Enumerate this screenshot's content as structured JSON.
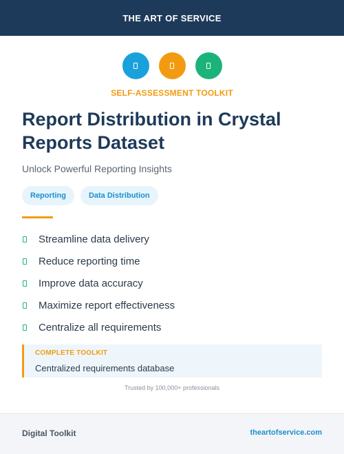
{
  "header": {
    "brand": "THE ART OF SERVICE"
  },
  "icons": [
    {
      "name": "document-icon",
      "color": "#1aa1dc"
    },
    {
      "name": "document-icon",
      "color": "#f29b11"
    },
    {
      "name": "document-icon",
      "color": "#1bb37a"
    }
  ],
  "eyebrow": "SELF-ASSESSMENT TOOLKIT",
  "title": "Report Distribution in Crystal Reports Dataset",
  "subtitle": "Unlock Powerful Reporting Insights",
  "tags": [
    "Reporting",
    "Data Distribution"
  ],
  "features": [
    "Streamline data delivery",
    "Reduce reporting time",
    "Improve data accuracy",
    "Maximize report effectiveness",
    "Centralize all requirements"
  ],
  "callout": {
    "label": "COMPLETE TOOLKIT",
    "text": "Centralized requirements database"
  },
  "trusted": "Trusted by 100,000+ professionals",
  "footer": {
    "left": "Digital Toolkit",
    "right": "theartofservice.com"
  },
  "colors": {
    "navy": "#1e3a5a",
    "blue": "#1aa1dc",
    "orange": "#f29b11",
    "green": "#1bb37a"
  }
}
